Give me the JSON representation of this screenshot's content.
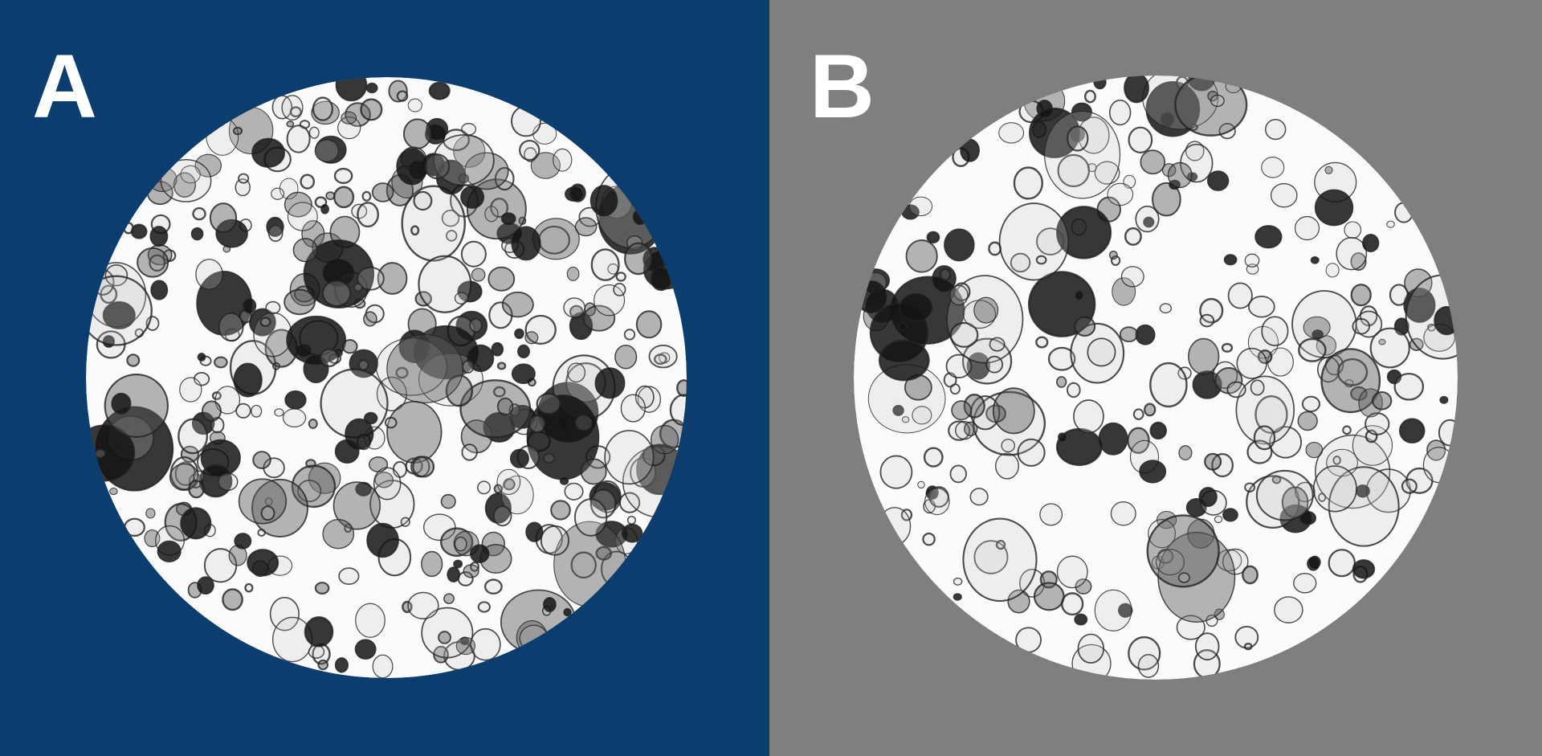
{
  "panels": [
    {
      "label": "A",
      "background": "#0b3d6e",
      "image": "micrograph-organoids-dense"
    },
    {
      "label": "B",
      "background": "#7f7f81",
      "image": "micrograph-organoids-clustered"
    }
  ]
}
